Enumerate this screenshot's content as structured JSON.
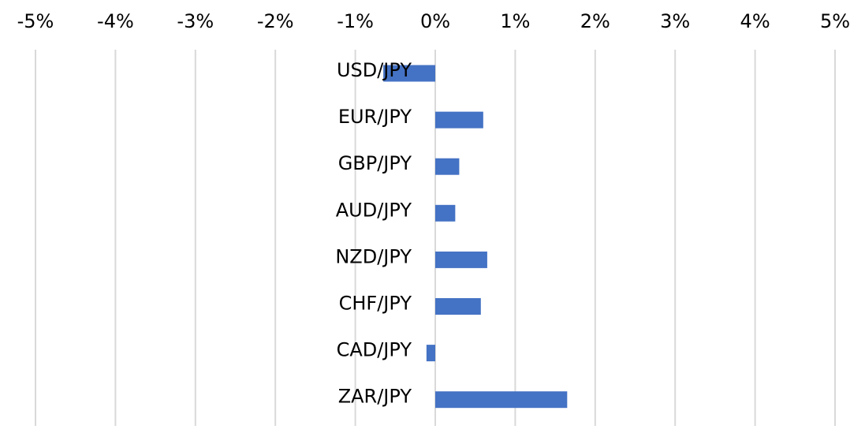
{
  "chart_data": {
    "type": "bar",
    "orientation": "horizontal",
    "title": "",
    "xlabel": "",
    "ylabel": "",
    "categories": [
      "USD/JPY",
      "EUR/JPY",
      "GBP/JPY",
      "AUD/JPY",
      "NZD/JPY",
      "CHF/JPY",
      "CAD/JPY",
      "ZAR/JPY"
    ],
    "series": [
      {
        "values": [
          -0.65,
          0.6,
          0.3,
          0.25,
          0.65,
          0.57,
          -0.11,
          1.65
        ],
        "color": "#4472c4"
      }
    ],
    "xlim": [
      -5,
      5
    ],
    "x_ticks": [
      -5,
      -4,
      -3,
      -2,
      -1,
      0,
      1,
      2,
      3,
      4,
      5
    ],
    "x_tick_labels": [
      "-5%",
      "-4%",
      "-3%",
      "-2%",
      "-1%",
      "0%",
      "1%",
      "2%",
      "3%",
      "4%",
      "5%"
    ],
    "x_axis_position": "top",
    "grid": true,
    "legend": "none",
    "unit": "%"
  }
}
